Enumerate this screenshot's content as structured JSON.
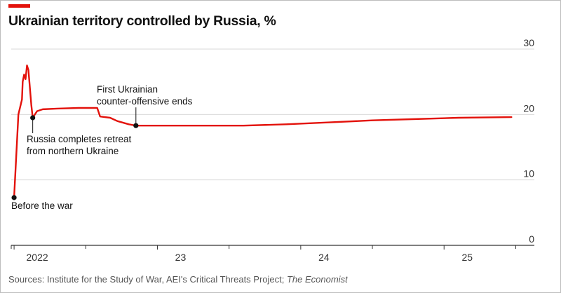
{
  "title": "Ukrainian territory controlled by Russia, %",
  "source": {
    "text": "Sources: Institute for the Study of War, AEI's Critical Threats Project; ",
    "publication": "The Economist"
  },
  "colors": {
    "accent": "#e3120b",
    "line": "#e3120b",
    "gridline": "#d9d9d9",
    "axis": "#333333",
    "text": "#121212"
  },
  "chart_data": {
    "type": "line",
    "title": "Ukrainian territory controlled by Russia, %",
    "xlabel": "",
    "ylabel": "",
    "xlim": [
      2021.98,
      2025.63
    ],
    "ylim": [
      0,
      30
    ],
    "y_ticks": [
      0,
      10,
      20,
      30
    ],
    "x_ticks": [
      {
        "label": "2022",
        "value": 2022.0
      },
      {
        "label": "23",
        "value": 2023.0
      },
      {
        "label": "24",
        "value": 2024.0
      },
      {
        "label": "25",
        "value": 2025.0
      }
    ],
    "x_minor_ticks": [
      2021.98,
      2022.5,
      2023.5,
      2024.5,
      2025.5
    ],
    "grid": true,
    "series": [
      {
        "name": "Ukrainian territory controlled by Russia",
        "points": [
          [
            2022.0,
            7.3
          ],
          [
            2022.03,
            20.0
          ],
          [
            2022.055,
            22.3
          ],
          [
            2022.06,
            25.0
          ],
          [
            2022.07,
            26.1
          ],
          [
            2022.08,
            25.4
          ],
          [
            2022.09,
            27.5
          ],
          [
            2022.1,
            26.8
          ],
          [
            2022.12,
            21.5
          ],
          [
            2022.13,
            19.5
          ],
          [
            2022.16,
            20.5
          ],
          [
            2022.2,
            20.8
          ],
          [
            2022.3,
            20.9
          ],
          [
            2022.45,
            21.0
          ],
          [
            2022.58,
            21.0
          ],
          [
            2022.6,
            19.7
          ],
          [
            2022.67,
            19.5
          ],
          [
            2022.72,
            19.0
          ],
          [
            2022.8,
            18.5
          ],
          [
            2022.85,
            18.3
          ],
          [
            2023.0,
            18.3
          ],
          [
            2023.3,
            18.3
          ],
          [
            2023.6,
            18.3
          ],
          [
            2023.9,
            18.5
          ],
          [
            2024.2,
            18.8
          ],
          [
            2024.5,
            19.1
          ],
          [
            2024.8,
            19.3
          ],
          [
            2025.1,
            19.5
          ],
          [
            2025.47,
            19.6
          ]
        ]
      }
    ],
    "annotations": [
      {
        "label_lines": [
          "Before the war"
        ],
        "x": 2022.0,
        "y": 7.3
      },
      {
        "label_lines": [
          "Russia completes retreat",
          "from northern Ukraine"
        ],
        "x": 2022.13,
        "y": 19.5
      },
      {
        "label_lines": [
          "First Ukrainian",
          "counter-offensive ends"
        ],
        "x": 2022.85,
        "y": 18.3
      }
    ]
  }
}
